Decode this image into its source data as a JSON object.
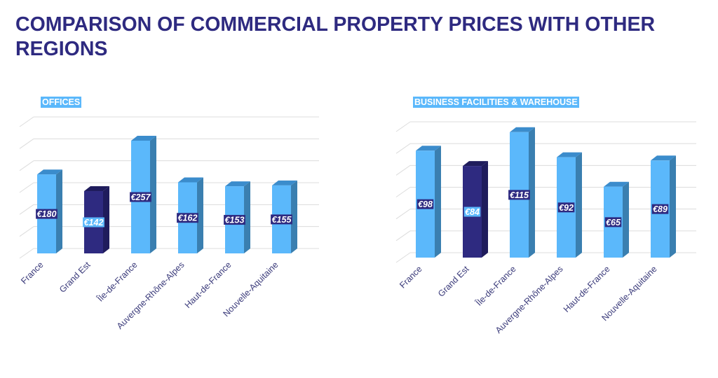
{
  "title": "COMPARISON OF COMMERCIAL PROPERTY PRICES WITH OTHER REGIONS",
  "colors": {
    "title": "#2e2a80",
    "bar": "#5bb8fb",
    "bar_side": "#3a7fb0",
    "bar_top": "#3b8ccc",
    "highlight": "#2e2a80",
    "highlight_side": "#1f1c5c",
    "label_text": "#3a3a7a",
    "grid": "#dcdcdc"
  },
  "chart_data": [
    {
      "type": "bar",
      "title": "OFFICES",
      "style": "3d-column",
      "categories": [
        "France",
        "Grand Est",
        "Île-de-France",
        "Auvergne-Rhône-Alpes",
        "Haut-de-France",
        "Nouvelle-Aquitaine"
      ],
      "values": [
        180,
        142,
        257,
        162,
        153,
        155
      ],
      "data_labels": [
        "€180",
        "€142",
        "€257",
        "€162",
        "€153",
        "€155"
      ],
      "highlight_category": "Grand Est",
      "ylim": [
        0,
        300
      ],
      "grid": true,
      "y_step": 50,
      "legend": "none"
    },
    {
      "type": "bar",
      "title": "BUSINESS FACILITIES & WAREHOUSE",
      "style": "3d-column",
      "categories": [
        "France",
        "Grand Est",
        "Île-de-France",
        "Auvergne-Rhône-Alpes",
        "Haut-de-France",
        "Nouvelle-Aquitaine"
      ],
      "values": [
        98,
        84,
        115,
        92,
        65,
        89
      ],
      "data_labels": [
        "€98",
        "€84",
        "€115",
        "€92",
        "€65",
        "€89"
      ],
      "highlight_category": "Grand Est",
      "ylim": [
        0,
        120
      ],
      "grid": true,
      "y_step": 20,
      "legend": "none"
    }
  ]
}
